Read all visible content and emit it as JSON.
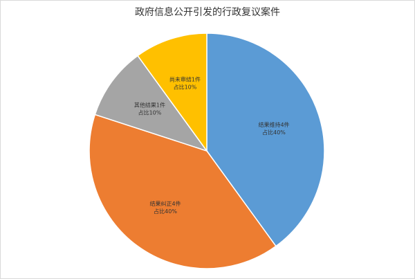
{
  "chart_data": {
    "type": "pie",
    "title": "政府信息公开引发的行政复议案件",
    "categories": [
      "结果维持4件",
      "结果纠正4件",
      "其他结果1件",
      "尚未审结1件"
    ],
    "values": [
      40,
      40,
      10,
      10
    ],
    "value_labels": [
      "占比40%",
      "占比40%",
      "占比10%",
      "占比10%"
    ],
    "colors": [
      "#5b9bd5",
      "#ed7d31",
      "#a5a5a5",
      "#ffc000"
    ]
  }
}
